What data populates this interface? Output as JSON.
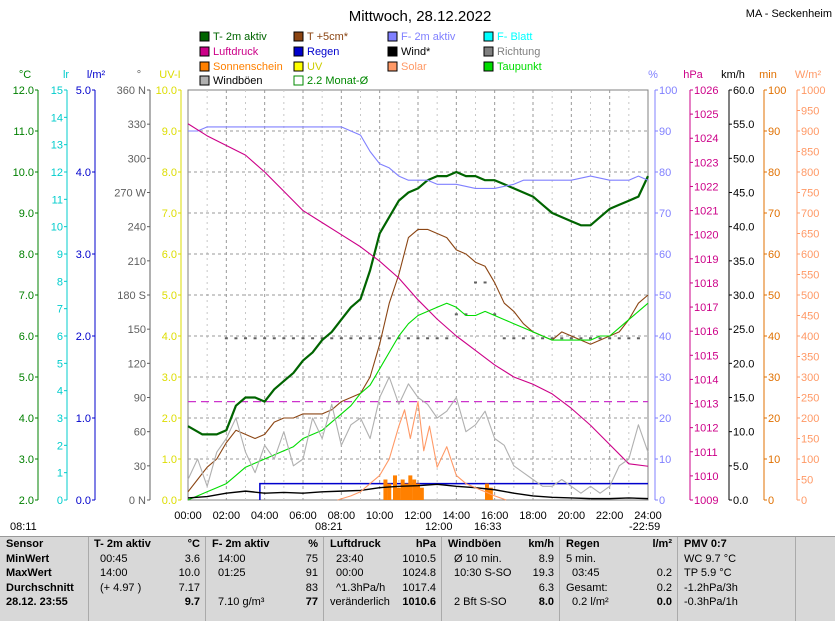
{
  "title": "Mittwoch, 28.12.2022",
  "station": "MA - Seckenheim",
  "legend": [
    {
      "label": "T- 2m aktiv",
      "color": "#006400",
      "kind": "box"
    },
    {
      "label": "T +5cm*",
      "color": "#8b4513",
      "kind": "box"
    },
    {
      "label": "F- 2m aktiv",
      "color": "#8080ff",
      "kind": "box"
    },
    {
      "label": "F- Blatt",
      "color": "#00ffff",
      "kind": "box"
    },
    {
      "label": "Luftdruck",
      "color": "#cc0088",
      "kind": "box"
    },
    {
      "label": "Regen",
      "color": "#0000cc",
      "kind": "box"
    },
    {
      "label": "Wind*",
      "color": "#000000",
      "kind": "box"
    },
    {
      "label": "Richtung",
      "color": "#808080",
      "kind": "box"
    },
    {
      "label": "Sonnenschein",
      "color": "#ff8000",
      "kind": "box"
    },
    {
      "label": "UV",
      "color": "#ffff00",
      "kind": "box"
    },
    {
      "label": "Solar",
      "color": "#ff9966",
      "kind": "box"
    },
    {
      "label": "Taupunkt",
      "color": "#00dd00",
      "kind": "box"
    },
    {
      "label": "Windböen",
      "color": "#b0b0b0",
      "kind": "box"
    },
    {
      "label": "2.2 Monat-Ø",
      "color": "#008800",
      "kind": "open"
    }
  ],
  "axis_units": {
    "left": [
      "°C",
      "lr",
      "l/m²",
      "°",
      "UV-I"
    ],
    "right": [
      "%",
      "hPa",
      "km/h",
      "min",
      "W/m²"
    ]
  },
  "colors": {
    "temp": "#006400",
    "soil": "#8b4513",
    "hum": "#8080ff",
    "press": "#cc0088",
    "dew": "#00dd00",
    "gust": "#b0b0b0",
    "wind": "#000000",
    "solar": "#ff9966",
    "sun": "#ff8000",
    "rain": "#0000cc",
    "avg": "#cc33cc",
    "uv": "#ffff00",
    "dir": "#606060"
  },
  "chart_data": {
    "type": "line",
    "x_unit": "hours",
    "xlim": [
      0,
      24
    ],
    "x_ticks": [
      "00:00",
      "02:00",
      "04:00",
      "06:00",
      "08:00",
      "10:00",
      "12:00",
      "14:00",
      "16:00",
      "18:00",
      "20:00",
      "22:00",
      "24:00"
    ],
    "axes": {
      "temp": {
        "unit": "°C",
        "range": [
          2.0,
          12.0
        ],
        "ticks": [
          "12.0",
          "11.0",
          "10.0",
          "9.0",
          "8.0",
          "7.0",
          "6.0",
          "5.0",
          "4.0",
          "3.0",
          "2.0"
        ]
      },
      "lr": {
        "unit": "lr",
        "range": [
          0,
          15
        ],
        "ticks": [
          "15",
          "14",
          "13",
          "12",
          "11",
          "10",
          "9",
          "8",
          "7",
          "6",
          "5",
          "4",
          "3",
          "2",
          "1",
          "0"
        ]
      },
      "rain": {
        "unit": "l/m²",
        "range": [
          0.0,
          5.0
        ],
        "ticks": [
          "5.0",
          "4.0",
          "3.0",
          "2.0",
          "1.0",
          "0.0"
        ]
      },
      "dir": {
        "unit": "°",
        "range": [
          0,
          360
        ],
        "ticks": [
          "360 N",
          "330",
          "300",
          "270 W",
          "240",
          "210",
          "180 S",
          "150",
          "120",
          "90",
          "60",
          "30",
          "0 N"
        ]
      },
      "uv": {
        "unit": "UV-I",
        "range": [
          0,
          10
        ],
        "ticks": [
          "10.0",
          "9.0",
          "8.0",
          "7.0",
          "6.0",
          "5.0",
          "4.0",
          "3.0",
          "2.0",
          "1.0",
          "0.0"
        ]
      },
      "hum": {
        "unit": "%",
        "range": [
          0,
          100
        ],
        "ticks": [
          "100",
          "90",
          "80",
          "70",
          "60",
          "50",
          "40",
          "30",
          "20",
          "10",
          "0"
        ]
      },
      "press": {
        "unit": "hPa",
        "range": [
          1009,
          1026
        ],
        "ticks": [
          "1026",
          "1025",
          "1024",
          "1023",
          "1022",
          "1021",
          "1020",
          "1019",
          "1018",
          "1017",
          "1016",
          "1015",
          "1014",
          "1013",
          "1012",
          "1011",
          "1010",
          "1009"
        ]
      },
      "wind": {
        "unit": "km/h",
        "range": [
          0,
          60
        ],
        "ticks": [
          "60.0",
          "55.0",
          "50.0",
          "45.0",
          "40.0",
          "35.0",
          "30.0",
          "25.0",
          "20.0",
          "15.0",
          "10.0",
          "5.0",
          "0.0"
        ]
      },
      "sun": {
        "unit": "min",
        "range": [
          0,
          100
        ],
        "ticks": [
          "100",
          "90",
          "80",
          "70",
          "60",
          "50",
          "40",
          "30",
          "20",
          "10",
          "0"
        ]
      },
      "solar": {
        "unit": "W/m²",
        "range": [
          0,
          1000
        ],
        "ticks": [
          "1000",
          "950",
          "900",
          "850",
          "800",
          "750",
          "700",
          "650",
          "600",
          "550",
          "500",
          "450",
          "400",
          "350",
          "300",
          "250",
          "200",
          "150",
          "100",
          "50",
          "0"
        ]
      }
    },
    "series": [
      {
        "name": "T- 2m aktiv",
        "axis": "temp",
        "color": "#006400",
        "x": [
          0,
          0.75,
          1.5,
          2,
          2.5,
          3,
          3.5,
          4,
          4.5,
          5,
          5.5,
          6,
          6.5,
          7,
          7.5,
          8,
          8.5,
          9,
          9.5,
          10,
          10.5,
          11,
          11.5,
          12,
          12.5,
          13,
          13.5,
          14,
          14.5,
          15,
          15.5,
          16,
          16.5,
          17,
          17.5,
          18,
          18.5,
          19,
          19.5,
          20,
          20.5,
          21,
          21.5,
          22,
          22.5,
          23,
          23.5,
          24
        ],
        "y": [
          3.8,
          3.6,
          3.6,
          3.7,
          4.3,
          4.5,
          4.5,
          4.4,
          4.7,
          4.9,
          5.1,
          5.4,
          5.6,
          5.9,
          6.1,
          6.4,
          6.7,
          6.9,
          7.6,
          8.5,
          8.9,
          9.3,
          9.5,
          9.6,
          9.8,
          9.9,
          9.9,
          10.0,
          9.9,
          9.9,
          9.8,
          9.8,
          9.7,
          9.6,
          9.5,
          9.4,
          9.2,
          9.0,
          8.9,
          8.8,
          8.7,
          8.7,
          8.9,
          9.1,
          9.2,
          9.3,
          9.4,
          9.9
        ]
      },
      {
        "name": "T +5cm*",
        "axis": "temp",
        "color": "#8b4513",
        "x": [
          0,
          0.5,
          1,
          1.5,
          2,
          2.5,
          3,
          3.5,
          4,
          4.5,
          5,
          5.5,
          6,
          6.5,
          7,
          7.5,
          8,
          8.5,
          9,
          9.5,
          10,
          10.5,
          11,
          11.5,
          12,
          12.5,
          13,
          13.5,
          14,
          14.5,
          15,
          15.5,
          16,
          16.5,
          17,
          17.5,
          18,
          18.5,
          19,
          19.5,
          20,
          20.5,
          21,
          21.5,
          22,
          22.5,
          23,
          23.5,
          24
        ],
        "y": [
          2.2,
          2.5,
          2.8,
          3.0,
          3.4,
          3.7,
          3.6,
          3.5,
          3.6,
          3.9,
          4.0,
          4.0,
          4.1,
          4.1,
          4.1,
          4.2,
          4.4,
          4.5,
          4.6,
          5.0,
          5.8,
          6.8,
          7.5,
          8.4,
          8.6,
          8.6,
          8.5,
          8.4,
          8.1,
          8.0,
          7.8,
          7.7,
          7.3,
          6.8,
          6.6,
          6.3,
          6.1,
          6.0,
          5.9,
          6.1,
          6.0,
          5.9,
          5.8,
          5.9,
          6.0,
          6.1,
          6.4,
          6.8,
          7.0
        ]
      },
      {
        "name": "F- 2m aktiv",
        "axis": "hum",
        "color": "#8080ff",
        "x": [
          0,
          0.5,
          1,
          1.5,
          2,
          3,
          4,
          5,
          6,
          7,
          8,
          9,
          9.5,
          10,
          10.5,
          11,
          11.5,
          12,
          12.5,
          13,
          14,
          15,
          16,
          17,
          17.5,
          18,
          19,
          20,
          21,
          22,
          23,
          23.5,
          24
        ],
        "y": [
          90,
          90,
          91,
          91,
          91,
          91,
          91,
          91,
          91,
          91,
          91,
          89,
          85,
          82,
          81,
          79,
          78,
          78,
          78,
          77,
          77,
          76,
          76,
          77,
          78,
          78,
          78,
          78,
          79,
          78,
          78,
          79,
          78
        ]
      },
      {
        "name": "Luftdruck",
        "axis": "press",
        "color": "#cc0088",
        "x": [
          0,
          1,
          2,
          3,
          4,
          5,
          6,
          7,
          8,
          9,
          10,
          11,
          12,
          13,
          14,
          15,
          16,
          17,
          18,
          19,
          20,
          21,
          22,
          23,
          24
        ],
        "y": [
          1024.6,
          1024.1,
          1023.7,
          1023.3,
          1022.6,
          1021.8,
          1021.0,
          1020.5,
          1020.0,
          1019.5,
          1018.9,
          1018.2,
          1017.3,
          1016.5,
          1015.8,
          1015.2,
          1014.6,
          1014.1,
          1013.8,
          1013.4,
          1012.8,
          1012.1,
          1011.3,
          1010.5,
          1010.4
        ]
      },
      {
        "name": "Taupunkt",
        "axis": "temp",
        "color": "#00dd00",
        "x": [
          0,
          0.5,
          1,
          1.5,
          2,
          2.5,
          3,
          3.5,
          4,
          4.5,
          5,
          5.5,
          6,
          6.5,
          7,
          7.5,
          8,
          8.5,
          9,
          9.5,
          10,
          10.5,
          11,
          11.5,
          12,
          12.5,
          13,
          13.5,
          14,
          14.5,
          15,
          15.5,
          16,
          16.5,
          17,
          17.5,
          18,
          18.5,
          19,
          19.5,
          20,
          20.5,
          21,
          21.5,
          22,
          22.5,
          23,
          23.5,
          24
        ],
        "y": [
          2.0,
          2.1,
          2.2,
          2.3,
          2.4,
          2.6,
          2.8,
          2.9,
          3.0,
          3.1,
          3.2,
          3.3,
          3.5,
          3.6,
          3.7,
          3.9,
          4.1,
          4.3,
          4.6,
          4.8,
          5.2,
          5.6,
          6.0,
          6.3,
          6.5,
          6.6,
          6.7,
          6.8,
          6.7,
          6.5,
          6.5,
          6.6,
          6.5,
          6.4,
          6.3,
          6.2,
          6.1,
          6.0,
          5.9,
          5.9,
          5.9,
          5.9,
          5.9,
          6.0,
          6.0,
          6.2,
          6.4,
          6.6,
          6.8
        ]
      },
      {
        "name": "Windböen",
        "axis": "wind",
        "color": "#b0b0b0",
        "x": [
          0,
          0.5,
          1,
          1.5,
          2,
          2.5,
          3,
          3.5,
          4,
          4.5,
          5,
          5.5,
          6,
          6.5,
          7,
          7.5,
          8,
          8.5,
          9,
          9.5,
          10,
          10.5,
          11,
          11.5,
          12,
          12.5,
          13,
          13.5,
          14,
          14.5,
          15,
          15.5,
          16,
          16.5,
          17,
          17.5,
          18,
          18.5,
          19,
          19.5,
          20,
          20.5,
          21,
          21.5,
          22,
          22.5,
          23,
          23.5,
          24
        ],
        "y": [
          3,
          6,
          2,
          7,
          9,
          12,
          7,
          4,
          8,
          6,
          10,
          5,
          6,
          12,
          9,
          14,
          8,
          11,
          12,
          9,
          15,
          18,
          14,
          17,
          15,
          14,
          12,
          13,
          15,
          10,
          11,
          13,
          9,
          8,
          5,
          4,
          3,
          2,
          2,
          3,
          2,
          1,
          2,
          1,
          2,
          5,
          6,
          11,
          7
        ]
      },
      {
        "name": "Wind*",
        "axis": "wind",
        "color": "#000000",
        "x": [
          0,
          1,
          2,
          3,
          4,
          5,
          6,
          7,
          8,
          9,
          10,
          11,
          12,
          13,
          14,
          15,
          16,
          17,
          18,
          19,
          20,
          21,
          22,
          23,
          24
        ],
        "y": [
          0.3,
          0.5,
          1.0,
          1.3,
          1.0,
          1.1,
          1.0,
          1.2,
          1.3,
          1.4,
          1.8,
          2.0,
          2.1,
          2.3,
          2.0,
          1.8,
          1.5,
          1.0,
          0.6,
          0.4,
          0.3,
          0.2,
          0.2,
          0.3,
          0.2
        ]
      },
      {
        "name": "Solar",
        "axis": "solar",
        "color": "#ff9966",
        "x": [
          7.8,
          8.5,
          9,
          9.5,
          10,
          10.5,
          11,
          11.3,
          11.6,
          12,
          12.3,
          12.6,
          13,
          13.5,
          14,
          14.5,
          15,
          15.5,
          16,
          16.3,
          16.6
        ],
        "y": [
          0,
          10,
          20,
          40,
          60,
          100,
          180,
          220,
          150,
          240,
          120,
          180,
          80,
          130,
          60,
          40,
          30,
          20,
          10,
          5,
          0
        ]
      }
    ],
    "rain_bar": {
      "axis": "rain",
      "from_hour": 3.75,
      "to_hour": 24,
      "value": 0.2
    },
    "avg_line": {
      "axis": "temp",
      "value": 4.4,
      "label": "2.2 Monat-Ø"
    },
    "sunshine": {
      "axis": "sun",
      "x": [
        10.3,
        10.5,
        10.8,
        11.0,
        11.2,
        11.4,
        11.6,
        11.8,
        12.0,
        12.2,
        15.6,
        15.8
      ],
      "y": [
        5,
        4,
        6,
        3,
        5,
        4,
        6,
        5,
        4,
        3,
        4,
        3
      ]
    },
    "direction": {
      "axis": "dir",
      "x": [
        2,
        2.5,
        3,
        3.5,
        4,
        4.5,
        5,
        5.5,
        6,
        6.5,
        7,
        7.5,
        8,
        8.5,
        9,
        9.5,
        10,
        10.5,
        11,
        11.5,
        12,
        12.5,
        13,
        13.5,
        14,
        14.5,
        15,
        15.5,
        16,
        16.5,
        17,
        17.5,
        18,
        18.5,
        19,
        19.5,
        20,
        20.5,
        21,
        21.5,
        22,
        22.5,
        23,
        23.5
      ],
      "y": [
        142,
        142,
        142,
        142,
        142,
        142,
        142,
        142,
        142,
        142,
        142,
        142,
        142,
        142,
        142,
        142,
        142,
        142,
        142,
        142,
        142,
        142,
        142,
        142,
        163,
        163,
        191,
        191,
        163,
        142,
        142,
        142,
        142,
        142,
        142,
        142,
        142,
        142,
        142,
        142,
        142,
        142,
        142,
        142
      ]
    }
  },
  "under_axis": {
    "left_time": "08:11",
    "sunrise": "08:21",
    "noon": "12:00",
    "sunset": "16:33",
    "moon": "-22:59"
  },
  "table": {
    "sensor": {
      "header": "Sensor",
      "rows": [
        "MinWert",
        "MaxWert",
        "Durchschnitt",
        "28.12.  23:55"
      ]
    },
    "temp": {
      "header": "T- 2m aktiv",
      "unit": "°C",
      "rows": [
        [
          "00:45",
          "3.6"
        ],
        [
          "14:00",
          "10.0"
        ],
        [
          "(+ 4.97 )",
          "7.17"
        ],
        [
          "",
          "9.7"
        ]
      ]
    },
    "hum": {
      "header": "F- 2m aktiv",
      "unit": "%",
      "rows": [
        [
          "14:00",
          "75"
        ],
        [
          "01:25",
          "91"
        ],
        [
          "",
          "83"
        ],
        [
          "7.10 g/m³",
          "77"
        ]
      ]
    },
    "press": {
      "header": "Luftdruck",
      "unit": "hPa",
      "rows": [
        [
          "23:40",
          "1010.5"
        ],
        [
          "00:00",
          "1024.8"
        ],
        [
          "^1.3hPa/h",
          "1017.4"
        ],
        [
          "veränderlich",
          "1010.6"
        ]
      ]
    },
    "wind": {
      "header": "Windböen",
      "unit": "km/h",
      "rows": [
        [
          "Ø 10 min.",
          "8.9"
        ],
        [
          "10:30   S-SO",
          "19.3"
        ],
        [
          "",
          "6.3"
        ],
        [
          "2 Bft S-SO",
          "8.0"
        ]
      ]
    },
    "rain": {
      "header": "Regen",
      "unit": "l/m²",
      "rows": [
        [
          "5 min.",
          ""
        ],
        [
          "03:45",
          "0.2"
        ],
        [
          "Gesamt:",
          "0.2"
        ],
        [
          "0.2 l/m²",
          "0.0"
        ]
      ]
    },
    "pmv": {
      "header": "PMV 0:7",
      "rows": [
        "WC 9.7 °C",
        "TP 5.9 °C",
        "-1.2hPa/3h",
        "-0.3hPa/1h"
      ]
    }
  }
}
